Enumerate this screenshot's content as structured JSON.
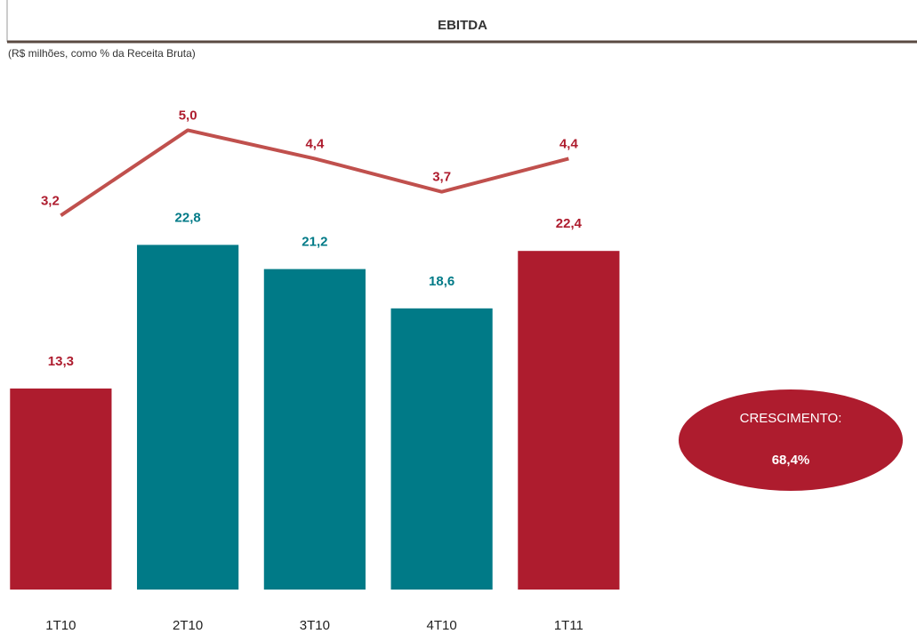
{
  "chart_data": {
    "type": "combo",
    "title": "EBITDA",
    "subtitle": "(R$ milhões, como % da Receita Bruta)",
    "categories": [
      "1T10",
      "2T10",
      "3T10",
      "4T10",
      "1T11"
    ],
    "series": [
      {
        "type": "bar",
        "colors": [
          "#ae1c2e",
          "#007a87",
          "#007a87",
          "#007a87",
          "#ae1c2e"
        ],
        "values": [
          13.3,
          22.8,
          21.2,
          18.6,
          22.4
        ],
        "value_labels": [
          "13,3",
          "22,8",
          "21,2",
          "18,6",
          "22,4"
        ]
      },
      {
        "type": "line",
        "axis": "y2",
        "color": "#c0504d",
        "label_color": "#ae1c2e",
        "values": [
          3.2,
          5.0,
          4.4,
          3.7,
          4.4
        ],
        "value_labels": [
          "3,2",
          "5,0",
          "4,4",
          "3,7",
          "4,4"
        ]
      }
    ],
    "ylim": [
      0,
      26
    ],
    "y2lim": [
      -4.7,
      3.6
    ],
    "annotation": {
      "title": "CRESCIMENTO:",
      "text": "68,4%",
      "color": "#ae1c2e"
    }
  }
}
